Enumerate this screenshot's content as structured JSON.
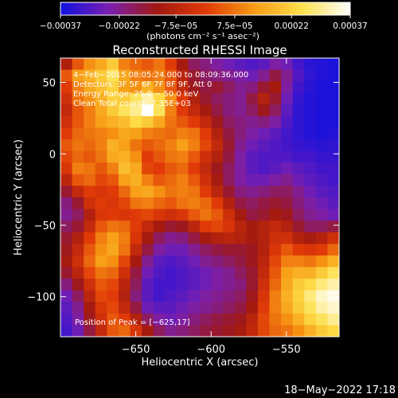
{
  "chart_data": {
    "type": "heatmap",
    "title": "Reconstructed RHESSI Image",
    "xlabel": "Heliocentric X (arcsec)",
    "ylabel": "Heliocentric Y (arcsec)",
    "xlim": [
      -700,
      -515
    ],
    "ylim": [
      -128,
      67
    ],
    "x_ticks": [
      -650,
      -600,
      -550
    ],
    "x_tick_labels": [
      "−650",
      "−600",
      "−550"
    ],
    "y_ticks": [
      50,
      0,
      -50,
      -100
    ],
    "y_tick_labels": [
      "50",
      "0",
      "−50",
      "−100"
    ],
    "colorbar": {
      "range": [
        -0.00037,
        0.00037
      ],
      "ticks": [
        -0.00037,
        -0.00022,
        -7.5e-05,
        7.5e-05,
        0.00022,
        0.00037
      ],
      "tick_labels": [
        "−0.00037",
        "−0.00022",
        "−7.5e−05",
        "7.5e−05",
        "0.00022",
        "0.00037"
      ],
      "unit_label": "(photons cm⁻² s⁻¹ asec⁻²)",
      "colors": [
        "#1010e0",
        "#7a1fb0",
        "#a01810",
        "#e03a08",
        "#f79a14",
        "#fde04a",
        "#ffffff"
      ]
    },
    "annotations": [
      "4−Feb−2015 08:05:24.000 to 08:09:36.000",
      "Detectors: 3F 5F 6F 7F 8F 9F, Att 0",
      "Energy Range: 25.0 − 50.0 keV",
      "Clean    Total counts: 7.35E+03"
    ],
    "peak_label": "Position of Peak = [−625,17]",
    "peak": {
      "x": -625,
      "y": 17
    },
    "grid": false,
    "background_color": "#000000",
    "grid_size": [
      24,
      24
    ],
    "values": [
      [
        0.37,
        0.55,
        0.65,
        0.7,
        0.78,
        0.62,
        0.58,
        0.55,
        0.6,
        0.5,
        0.35,
        0.25,
        0.22,
        0.18,
        0.15,
        0.12,
        0.1,
        0.12,
        0.18,
        0.15,
        0.08,
        0.04,
        0.03,
        0.02
      ],
      [
        0.55,
        0.68,
        0.72,
        0.78,
        0.85,
        0.7,
        0.62,
        0.6,
        0.62,
        0.55,
        0.4,
        0.3,
        0.25,
        0.22,
        0.2,
        0.18,
        0.15,
        0.2,
        0.28,
        0.2,
        0.1,
        0.05,
        0.03,
        0.02
      ],
      [
        0.5,
        0.62,
        0.7,
        0.75,
        0.8,
        0.68,
        0.65,
        0.72,
        0.65,
        0.55,
        0.42,
        0.32,
        0.28,
        0.3,
        0.25,
        0.2,
        0.22,
        0.3,
        0.35,
        0.18,
        0.08,
        0.04,
        0.02,
        0.02
      ],
      [
        0.45,
        0.6,
        0.65,
        0.72,
        0.8,
        0.78,
        0.85,
        0.92,
        0.82,
        0.65,
        0.5,
        0.38,
        0.3,
        0.25,
        0.22,
        0.2,
        0.28,
        0.38,
        0.3,
        0.15,
        0.06,
        0.03,
        0.02,
        0.02
      ],
      [
        0.42,
        0.55,
        0.62,
        0.7,
        0.78,
        0.85,
        0.9,
        1.0,
        0.85,
        0.62,
        0.5,
        0.42,
        0.35,
        0.28,
        0.22,
        0.2,
        0.25,
        0.32,
        0.25,
        0.12,
        0.05,
        0.03,
        0.02,
        0.02
      ],
      [
        0.45,
        0.55,
        0.62,
        0.68,
        0.72,
        0.75,
        0.82,
        0.78,
        0.7,
        0.6,
        0.55,
        0.5,
        0.42,
        0.32,
        0.25,
        0.22,
        0.2,
        0.22,
        0.18,
        0.1,
        0.05,
        0.03,
        0.02,
        0.02
      ],
      [
        0.5,
        0.58,
        0.6,
        0.62,
        0.65,
        0.7,
        0.68,
        0.62,
        0.6,
        0.58,
        0.62,
        0.6,
        0.5,
        0.38,
        0.28,
        0.22,
        0.18,
        0.15,
        0.12,
        0.08,
        0.05,
        0.03,
        0.02,
        0.03
      ],
      [
        0.55,
        0.6,
        0.58,
        0.62,
        0.72,
        0.68,
        0.6,
        0.55,
        0.58,
        0.62,
        0.68,
        0.62,
        0.52,
        0.42,
        0.3,
        0.2,
        0.15,
        0.12,
        0.1,
        0.08,
        0.06,
        0.05,
        0.04,
        0.05
      ],
      [
        0.52,
        0.58,
        0.55,
        0.6,
        0.7,
        0.72,
        0.65,
        0.5,
        0.55,
        0.6,
        0.62,
        0.55,
        0.45,
        0.38,
        0.28,
        0.18,
        0.12,
        0.1,
        0.1,
        0.1,
        0.08,
        0.08,
        0.06,
        0.06
      ],
      [
        0.48,
        0.62,
        0.6,
        0.55,
        0.62,
        0.75,
        0.7,
        0.52,
        0.5,
        0.55,
        0.58,
        0.5,
        0.42,
        0.32,
        0.25,
        0.18,
        0.12,
        0.1,
        0.12,
        0.15,
        0.12,
        0.1,
        0.08,
        0.08
      ],
      [
        0.4,
        0.55,
        0.58,
        0.52,
        0.55,
        0.68,
        0.72,
        0.62,
        0.55,
        0.58,
        0.62,
        0.55,
        0.45,
        0.35,
        0.25,
        0.18,
        0.15,
        0.15,
        0.18,
        0.2,
        0.15,
        0.12,
        0.1,
        0.08
      ],
      [
        0.3,
        0.42,
        0.5,
        0.48,
        0.5,
        0.58,
        0.68,
        0.7,
        0.65,
        0.6,
        0.62,
        0.6,
        0.5,
        0.4,
        0.3,
        0.22,
        0.2,
        0.22,
        0.25,
        0.25,
        0.2,
        0.15,
        0.12,
        0.1
      ],
      [
        0.22,
        0.3,
        0.45,
        0.5,
        0.48,
        0.52,
        0.6,
        0.62,
        0.58,
        0.55,
        0.6,
        0.62,
        0.58,
        0.5,
        0.38,
        0.28,
        0.25,
        0.28,
        0.3,
        0.28,
        0.22,
        0.18,
        0.15,
        0.12
      ],
      [
        0.2,
        0.25,
        0.38,
        0.48,
        0.5,
        0.48,
        0.5,
        0.52,
        0.48,
        0.45,
        0.48,
        0.55,
        0.6,
        0.55,
        0.45,
        0.35,
        0.28,
        0.3,
        0.35,
        0.32,
        0.25,
        0.2,
        0.18,
        0.15
      ],
      [
        0.25,
        0.3,
        0.42,
        0.55,
        0.6,
        0.58,
        0.5,
        0.42,
        0.35,
        0.3,
        0.32,
        0.4,
        0.5,
        0.52,
        0.48,
        0.4,
        0.35,
        0.38,
        0.42,
        0.38,
        0.3,
        0.25,
        0.25,
        0.28
      ],
      [
        0.3,
        0.38,
        0.5,
        0.62,
        0.68,
        0.62,
        0.48,
        0.35,
        0.25,
        0.2,
        0.22,
        0.28,
        0.35,
        0.38,
        0.4,
        0.38,
        0.35,
        0.38,
        0.45,
        0.45,
        0.38,
        0.35,
        0.38,
        0.45
      ],
      [
        0.32,
        0.42,
        0.55,
        0.65,
        0.7,
        0.6,
        0.42,
        0.28,
        0.18,
        0.15,
        0.15,
        0.2,
        0.25,
        0.28,
        0.3,
        0.3,
        0.32,
        0.38,
        0.48,
        0.55,
        0.5,
        0.48,
        0.5,
        0.58
      ],
      [
        0.35,
        0.45,
        0.58,
        0.68,
        0.65,
        0.52,
        0.35,
        0.2,
        0.12,
        0.1,
        0.12,
        0.15,
        0.2,
        0.22,
        0.25,
        0.28,
        0.32,
        0.4,
        0.52,
        0.62,
        0.62,
        0.6,
        0.65,
        0.72
      ],
      [
        0.3,
        0.4,
        0.52,
        0.6,
        0.58,
        0.45,
        0.28,
        0.15,
        0.1,
        0.08,
        0.1,
        0.12,
        0.15,
        0.18,
        0.2,
        0.25,
        0.3,
        0.42,
        0.55,
        0.68,
        0.72,
        0.72,
        0.78,
        0.85
      ],
      [
        0.22,
        0.32,
        0.45,
        0.55,
        0.52,
        0.4,
        0.25,
        0.12,
        0.08,
        0.08,
        0.1,
        0.12,
        0.15,
        0.18,
        0.2,
        0.22,
        0.3,
        0.45,
        0.58,
        0.7,
        0.78,
        0.82,
        0.88,
        0.92
      ],
      [
        0.15,
        0.25,
        0.4,
        0.52,
        0.5,
        0.38,
        0.22,
        0.12,
        0.08,
        0.1,
        0.12,
        0.15,
        0.18,
        0.2,
        0.22,
        0.25,
        0.32,
        0.48,
        0.62,
        0.72,
        0.8,
        0.88,
        0.95,
        0.98
      ],
      [
        0.12,
        0.2,
        0.35,
        0.48,
        0.52,
        0.42,
        0.28,
        0.15,
        0.12,
        0.12,
        0.15,
        0.18,
        0.2,
        0.22,
        0.25,
        0.28,
        0.35,
        0.5,
        0.62,
        0.7,
        0.78,
        0.85,
        0.92,
        0.95
      ],
      [
        0.1,
        0.18,
        0.32,
        0.45,
        0.55,
        0.5,
        0.38,
        0.25,
        0.18,
        0.15,
        0.18,
        0.22,
        0.25,
        0.28,
        0.3,
        0.32,
        0.4,
        0.52,
        0.6,
        0.65,
        0.72,
        0.8,
        0.85,
        0.9
      ],
      [
        0.08,
        0.15,
        0.28,
        0.42,
        0.55,
        0.58,
        0.48,
        0.35,
        0.25,
        0.2,
        0.22,
        0.25,
        0.28,
        0.3,
        0.32,
        0.35,
        0.42,
        0.52,
        0.58,
        0.6,
        0.65,
        0.72,
        0.78,
        0.82
      ]
    ]
  },
  "footer": {
    "timestamp": "18−May−2022 17:18"
  }
}
